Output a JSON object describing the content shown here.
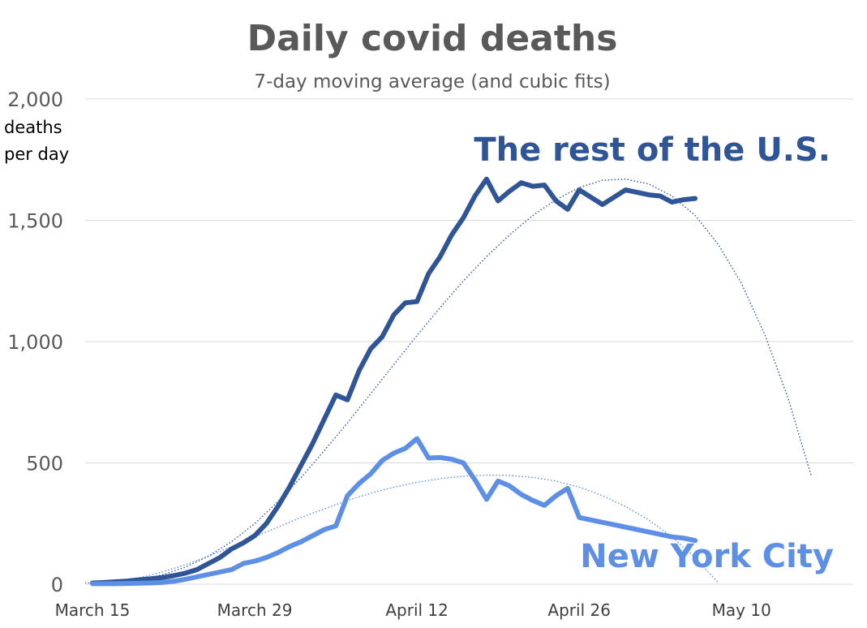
{
  "chart_data": {
    "type": "line",
    "title": "Daily covid deaths",
    "subtitle": "7-day moving average (and cubic fits)",
    "ylabel_lines": [
      "deaths",
      "per day"
    ],
    "ylim": [
      0,
      2000
    ],
    "y_ticks": [
      0,
      500,
      1000,
      1500,
      2000
    ],
    "y_tick_labels": [
      "0",
      "500",
      "1,000",
      "1,500",
      "2,000"
    ],
    "x_start_date": "March 15",
    "x_ticks": [
      {
        "day": 0,
        "label": "March 15"
      },
      {
        "day": 14,
        "label": "March 29"
      },
      {
        "day": 28,
        "label": "April 12"
      },
      {
        "day": 42,
        "label": "April 26"
      },
      {
        "day": 56,
        "label": "May 10"
      }
    ],
    "grid": true,
    "series": [
      {
        "name": "The rest of the U.S.",
        "color": "#2f5597",
        "x": [
          0,
          1,
          2,
          3,
          4,
          5,
          6,
          7,
          8,
          9,
          10,
          11,
          12,
          13,
          14,
          15,
          16,
          17,
          18,
          19,
          20,
          21,
          22,
          23,
          24,
          25,
          26,
          27,
          28,
          29,
          30,
          31,
          32,
          33,
          34,
          35,
          36,
          37,
          38,
          39,
          40,
          41,
          42,
          43,
          44,
          45,
          46,
          47,
          48,
          49,
          50,
          51,
          52
        ],
        "values": [
          5,
          7,
          10,
          13,
          18,
          22,
          27,
          35,
          45,
          60,
          85,
          110,
          145,
          170,
          200,
          250,
          320,
          400,
          490,
          580,
          680,
          780,
          760,
          880,
          970,
          1020,
          1110,
          1160,
          1165,
          1280,
          1350,
          1440,
          1510,
          1600,
          1670,
          1580,
          1620,
          1655,
          1640,
          1645,
          1580,
          1545,
          1625,
          1595,
          1565,
          1595,
          1625,
          1615,
          1605,
          1600,
          1575,
          1585,
          1590
        ],
        "fit": {
          "x": [
            -4,
            -2,
            0,
            2,
            4,
            6,
            8,
            10,
            12,
            14,
            16,
            18,
            20,
            22,
            24,
            26,
            28,
            30,
            32,
            34,
            36,
            38,
            40,
            42,
            44,
            46,
            48,
            50,
            52,
            54,
            56,
            58,
            60,
            62
          ],
          "values": [
            15,
            8,
            5,
            8,
            18,
            38,
            70,
            115,
            175,
            250,
            340,
            440,
            550,
            665,
            785,
            905,
            1025,
            1140,
            1250,
            1350,
            1440,
            1520,
            1585,
            1635,
            1665,
            1670,
            1650,
            1600,
            1520,
            1400,
            1240,
            1030,
            770,
            450
          ]
        }
      },
      {
        "name": "New York City",
        "color": "#5e8fe6",
        "x": [
          0,
          1,
          2,
          3,
          4,
          5,
          6,
          7,
          8,
          9,
          10,
          11,
          12,
          13,
          14,
          15,
          16,
          17,
          18,
          19,
          20,
          21,
          22,
          23,
          24,
          25,
          26,
          27,
          28,
          29,
          30,
          31,
          32,
          33,
          34,
          35,
          36,
          37,
          38,
          39,
          40,
          41,
          42,
          43,
          44,
          45,
          46,
          47,
          48,
          49,
          50,
          51,
          52
        ],
        "values": [
          2,
          2,
          2,
          3,
          4,
          5,
          7,
          12,
          20,
          30,
          40,
          50,
          60,
          85,
          95,
          110,
          130,
          155,
          175,
          200,
          225,
          240,
          365,
          415,
          455,
          510,
          540,
          560,
          600,
          520,
          522,
          515,
          500,
          430,
          350,
          425,
          405,
          370,
          345,
          325,
          365,
          395,
          275,
          265,
          255,
          245,
          235,
          225,
          215,
          205,
          195,
          190,
          180
        ],
        "fit": {
          "x": [
            -4,
            -2,
            0,
            2,
            4,
            6,
            8,
            10,
            12,
            14,
            16,
            18,
            20,
            22,
            24,
            26,
            28,
            30,
            32,
            34,
            36,
            38,
            40,
            42,
            44,
            46,
            48,
            50,
            52,
            54
          ],
          "values": [
            5,
            5,
            5,
            10,
            25,
            50,
            80,
            115,
            155,
            195,
            235,
            275,
            310,
            345,
            375,
            400,
            420,
            435,
            445,
            450,
            448,
            440,
            425,
            400,
            365,
            320,
            265,
            195,
            110,
            5
          ]
        }
      }
    ]
  }
}
